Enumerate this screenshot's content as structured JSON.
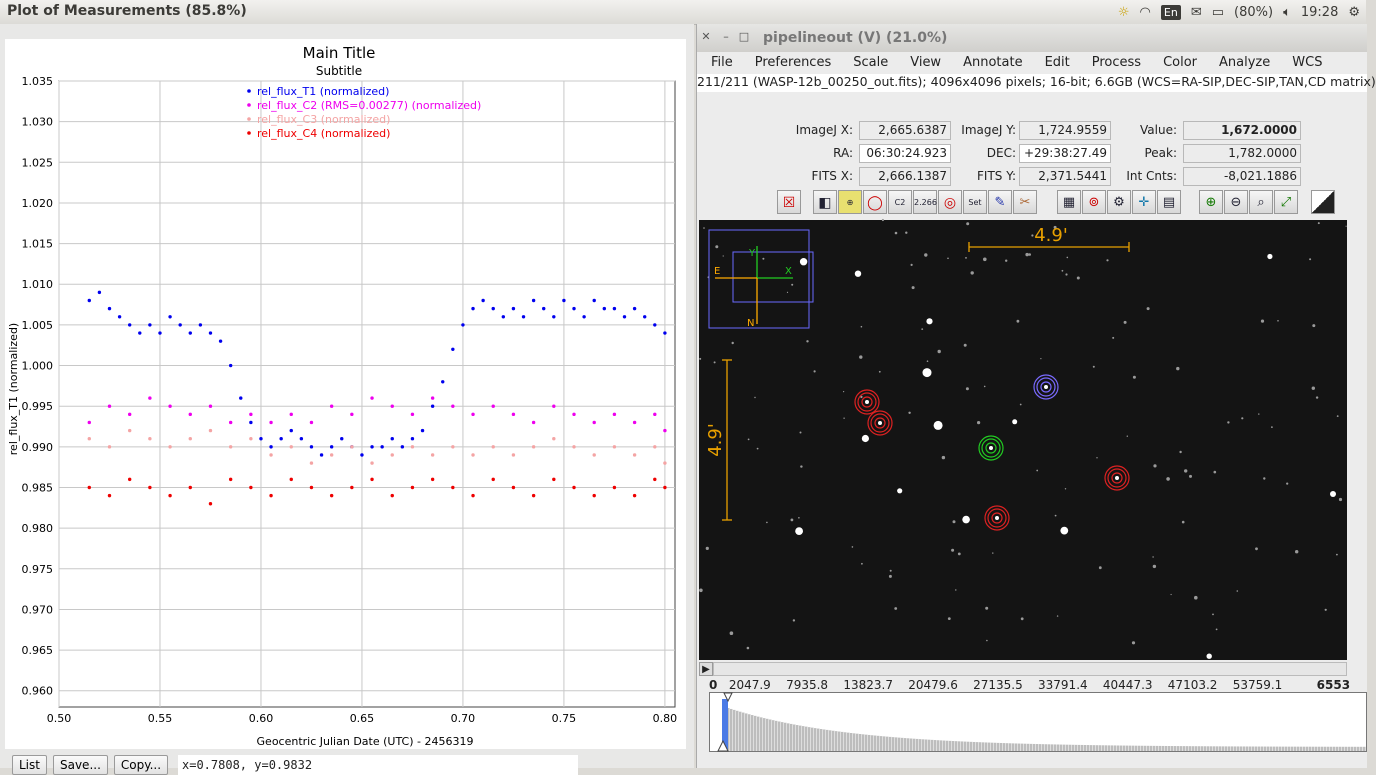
{
  "topbar": {
    "window_title": "Plot of Measurements (85.8%)",
    "lang": "En",
    "battery": "(80%)",
    "clock": "19:28"
  },
  "plot_window": {
    "buttons": {
      "list": "List",
      "save": "Save...",
      "copy": "Copy..."
    },
    "cursor_readout": "x=0.7808, y=0.9832"
  },
  "chart_data": {
    "type": "scatter",
    "title": "Main Title",
    "subtitle": "Subtitle",
    "xlabel": "Geocentric Julian Date (UTC) - 2456319",
    "ylabel": "rel_flux_T1 (normalized)",
    "xlim": [
      0.5,
      0.805
    ],
    "ylim": [
      0.958,
      1.035
    ],
    "xticks": [
      "0.50",
      "0.55",
      "0.60",
      "0.65",
      "0.70",
      "0.75",
      "0.80"
    ],
    "yticks": [
      "1.035",
      "1.030",
      "1.025",
      "1.020",
      "1.015",
      "1.010",
      "1.005",
      "1.000",
      "0.995",
      "0.990",
      "0.985",
      "0.980",
      "0.975",
      "0.970",
      "0.965",
      "0.960"
    ],
    "grid": true,
    "legend_position": "top-center",
    "series": [
      {
        "name": "rel_flux_T1 (normalized)",
        "color": "#0000ee",
        "x": [
          0.515,
          0.52,
          0.525,
          0.53,
          0.535,
          0.54,
          0.545,
          0.55,
          0.555,
          0.56,
          0.565,
          0.57,
          0.575,
          0.58,
          0.585,
          0.59,
          0.595,
          0.6,
          0.605,
          0.61,
          0.615,
          0.62,
          0.625,
          0.63,
          0.635,
          0.64,
          0.645,
          0.65,
          0.655,
          0.66,
          0.665,
          0.67,
          0.675,
          0.68,
          0.685,
          0.69,
          0.695,
          0.7,
          0.705,
          0.71,
          0.715,
          0.72,
          0.725,
          0.73,
          0.735,
          0.74,
          0.745,
          0.75,
          0.755,
          0.76,
          0.765,
          0.77,
          0.775,
          0.78,
          0.785,
          0.79,
          0.795,
          0.8
        ],
        "y": [
          1.008,
          1.009,
          1.007,
          1.006,
          1.005,
          1.004,
          1.005,
          1.004,
          1.006,
          1.005,
          1.004,
          1.005,
          1.004,
          1.003,
          1.0,
          0.996,
          0.993,
          0.991,
          0.99,
          0.991,
          0.992,
          0.991,
          0.99,
          0.989,
          0.99,
          0.991,
          0.99,
          0.989,
          0.99,
          0.99,
          0.991,
          0.99,
          0.991,
          0.992,
          0.995,
          0.998,
          1.002,
          1.005,
          1.007,
          1.008,
          1.007,
          1.006,
          1.007,
          1.006,
          1.008,
          1.007,
          1.006,
          1.008,
          1.007,
          1.006,
          1.008,
          1.007,
          1.007,
          1.006,
          1.007,
          1.006,
          1.005,
          1.004
        ]
      },
      {
        "name": "rel_flux_C2 (RMS=0.00277) (normalized)",
        "color": "#ee00ee",
        "x": [
          0.515,
          0.525,
          0.535,
          0.545,
          0.555,
          0.565,
          0.575,
          0.585,
          0.595,
          0.605,
          0.615,
          0.625,
          0.635,
          0.645,
          0.655,
          0.665,
          0.675,
          0.685,
          0.695,
          0.705,
          0.715,
          0.725,
          0.735,
          0.745,
          0.755,
          0.765,
          0.775,
          0.785,
          0.795,
          0.8
        ],
        "y": [
          0.993,
          0.995,
          0.994,
          0.996,
          0.995,
          0.994,
          0.995,
          0.993,
          0.994,
          0.993,
          0.994,
          0.993,
          0.995,
          0.994,
          0.996,
          0.995,
          0.994,
          0.996,
          0.995,
          0.994,
          0.995,
          0.994,
          0.993,
          0.995,
          0.994,
          0.993,
          0.994,
          0.993,
          0.994,
          0.992
        ]
      },
      {
        "name": "rel_flux_C3 (normalized)",
        "color": "#f4a4a4",
        "x": [
          0.515,
          0.525,
          0.535,
          0.545,
          0.555,
          0.565,
          0.575,
          0.585,
          0.595,
          0.605,
          0.615,
          0.625,
          0.635,
          0.645,
          0.655,
          0.665,
          0.675,
          0.685,
          0.695,
          0.705,
          0.715,
          0.725,
          0.735,
          0.745,
          0.755,
          0.765,
          0.775,
          0.785,
          0.795,
          0.8
        ],
        "y": [
          0.991,
          0.99,
          0.992,
          0.991,
          0.99,
          0.991,
          0.992,
          0.99,
          0.991,
          0.989,
          0.99,
          0.988,
          0.989,
          0.99,
          0.988,
          0.989,
          0.99,
          0.989,
          0.99,
          0.989,
          0.99,
          0.989,
          0.99,
          0.991,
          0.99,
          0.989,
          0.99,
          0.989,
          0.99,
          0.988
        ]
      },
      {
        "name": "rel_flux_C4 (normalized)",
        "color": "#ee0000",
        "x": [
          0.515,
          0.525,
          0.535,
          0.545,
          0.555,
          0.565,
          0.575,
          0.585,
          0.595,
          0.605,
          0.615,
          0.625,
          0.635,
          0.645,
          0.655,
          0.665,
          0.675,
          0.685,
          0.695,
          0.705,
          0.715,
          0.725,
          0.735,
          0.745,
          0.755,
          0.765,
          0.775,
          0.785,
          0.795,
          0.8
        ],
        "y": [
          0.985,
          0.984,
          0.986,
          0.985,
          0.984,
          0.985,
          0.983,
          0.986,
          0.985,
          0.984,
          0.986,
          0.985,
          0.984,
          0.985,
          0.986,
          0.984,
          0.985,
          0.986,
          0.985,
          0.984,
          0.986,
          0.985,
          0.984,
          0.986,
          0.985,
          0.984,
          0.985,
          0.984,
          0.986,
          0.985
        ]
      }
    ]
  },
  "image_window": {
    "title": "pipelineout (V) (21.0%)",
    "menu": [
      "File",
      "Preferences",
      "Scale",
      "View",
      "Annotate",
      "Edit",
      "Process",
      "Color",
      "Analyze",
      "WCS"
    ],
    "info": "211/211 (WASP-12b_00250_out.fits); 4096x4096 pixels; 16-bit; 6.6GB (WCS=RA-SIP,DEC-SIP,TAN,CD matrix)",
    "fields": {
      "imagej_x_label": "ImageJ X:",
      "imagej_x": "2,665.6387",
      "imagej_y_label": "ImageJ Y:",
      "imagej_y": "1,724.9559",
      "value_label": "Value:",
      "value": "1,672.0000",
      "ra_label": "RA:",
      "ra": "06:30:24.923",
      "dec_label": "DEC:",
      "dec": "+29:38:27.49",
      "peak_label": "Peak:",
      "peak": "1,782.0000",
      "fits_x_label": "FITS X:",
      "fits_x": "2,666.1387",
      "fits_y_label": "FITS Y:",
      "fits_y": "2,371.5441",
      "intcnts_label": "Int Cnts:",
      "intcnts": "-8,021.1886"
    },
    "toolbar_text": {
      "c2": "C2",
      "val": "2.266",
      "set": "Set"
    },
    "scale_label": "4.9'",
    "compass": {
      "e": "E",
      "n": "N",
      "x": "X",
      "y": "Y"
    },
    "hist_labels": [
      "0",
      "2047.9",
      "7935.8",
      "13823.7",
      "20479.6",
      "27135.5",
      "33791.4",
      "40447.3",
      "47103.2",
      "53759.1",
      "6553"
    ]
  }
}
